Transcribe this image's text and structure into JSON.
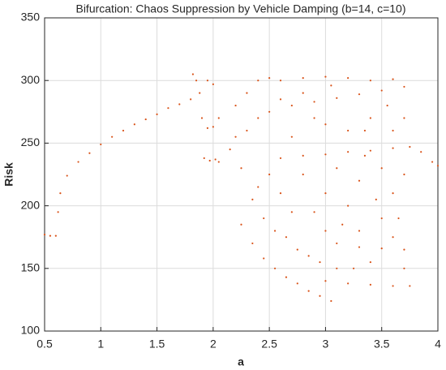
{
  "chart_data": {
    "type": "scatter",
    "title": "Bifurcation: Chaos Suppression by Vehicle Damping (b=14, c=10)",
    "x_label": "a",
    "y_label": "Risk",
    "color": "#d95319",
    "grid": true,
    "xlim": [
      0.5,
      4
    ],
    "ylim": [
      100,
      350
    ],
    "xticks": [
      0.5,
      1,
      1.5,
      2,
      2.5,
      3,
      3.5,
      4
    ],
    "yticks": [
      100,
      150,
      200,
      250,
      300,
      350
    ],
    "x": [
      0.5,
      0.55,
      0.6,
      0.62,
      0.64,
      0.7,
      0.8,
      0.9,
      1.0,
      1.1,
      1.2,
      1.3,
      1.4,
      1.5,
      1.6,
      1.7,
      1.8,
      1.82,
      1.85,
      1.88,
      1.9,
      1.95,
      2.0,
      2.05,
      1.92,
      1.97,
      2.02,
      2.05,
      1.95,
      2.0,
      2.7,
      2.9,
      3.1,
      3.3,
      3.5,
      3.7,
      2.6,
      2.8,
      3.0,
      3.2,
      3.4,
      3.6,
      3.75,
      3.85,
      3.95,
      4.0,
      3.1,
      3.3,
      3.5,
      3.7,
      3.0,
      3.2,
      3.4,
      3.6,
      3.75,
      2.25,
      2.35,
      2.45,
      2.55,
      2.65,
      2.75,
      2.85,
      2.95,
      3.05,
      2.2,
      2.3,
      2.4,
      2.5,
      2.6,
      2.8,
      3.0,
      3.2,
      3.4,
      3.6,
      2.3,
      2.4,
      2.5,
      2.5,
      2.4,
      2.6,
      2.7,
      2.8,
      2.9,
      3.0,
      3.0,
      3.0,
      3.1,
      3.1,
      3.2,
      3.2,
      3.3,
      3.3,
      3.4,
      3.4,
      3.5,
      3.5,
      3.6,
      3.6,
      3.6,
      3.7,
      3.7,
      3.7,
      2.2,
      2.15,
      2.25,
      2.35,
      2.45,
      2.55,
      2.65,
      2.75,
      2.85,
      2.95,
      3.15,
      3.25,
      3.35,
      3.45,
      3.55,
      3.65,
      2.9,
      2.8,
      2.6,
      2.7,
      3.05,
      3.35
    ],
    "y": [
      177,
      176,
      176,
      195,
      210,
      224,
      235,
      242,
      249,
      255,
      260,
      265,
      269,
      273,
      278,
      281,
      285,
      305,
      300,
      290,
      270,
      262,
      263,
      270,
      238,
      236,
      237,
      235,
      300,
      297,
      280,
      283,
      286,
      289,
      292,
      295,
      238,
      240,
      241,
      243,
      244,
      246,
      247,
      243,
      235,
      232,
      170,
      167,
      166,
      165,
      140,
      138,
      137,
      136,
      136,
      185,
      170,
      158,
      150,
      143,
      138,
      132,
      128,
      124,
      280,
      290,
      300,
      302,
      300,
      302,
      303,
      302,
      300,
      301,
      260,
      270,
      275,
      225,
      215,
      210,
      255,
      225,
      195,
      265,
      210,
      180,
      230,
      150,
      260,
      200,
      220,
      180,
      270,
      155,
      230,
      190,
      260,
      210,
      175,
      225,
      150,
      270,
      255,
      245,
      230,
      205,
      190,
      180,
      175,
      165,
      160,
      155,
      185,
      150,
      240,
      205,
      280,
      190,
      270,
      290,
      285,
      195,
      296,
      260
    ]
  }
}
